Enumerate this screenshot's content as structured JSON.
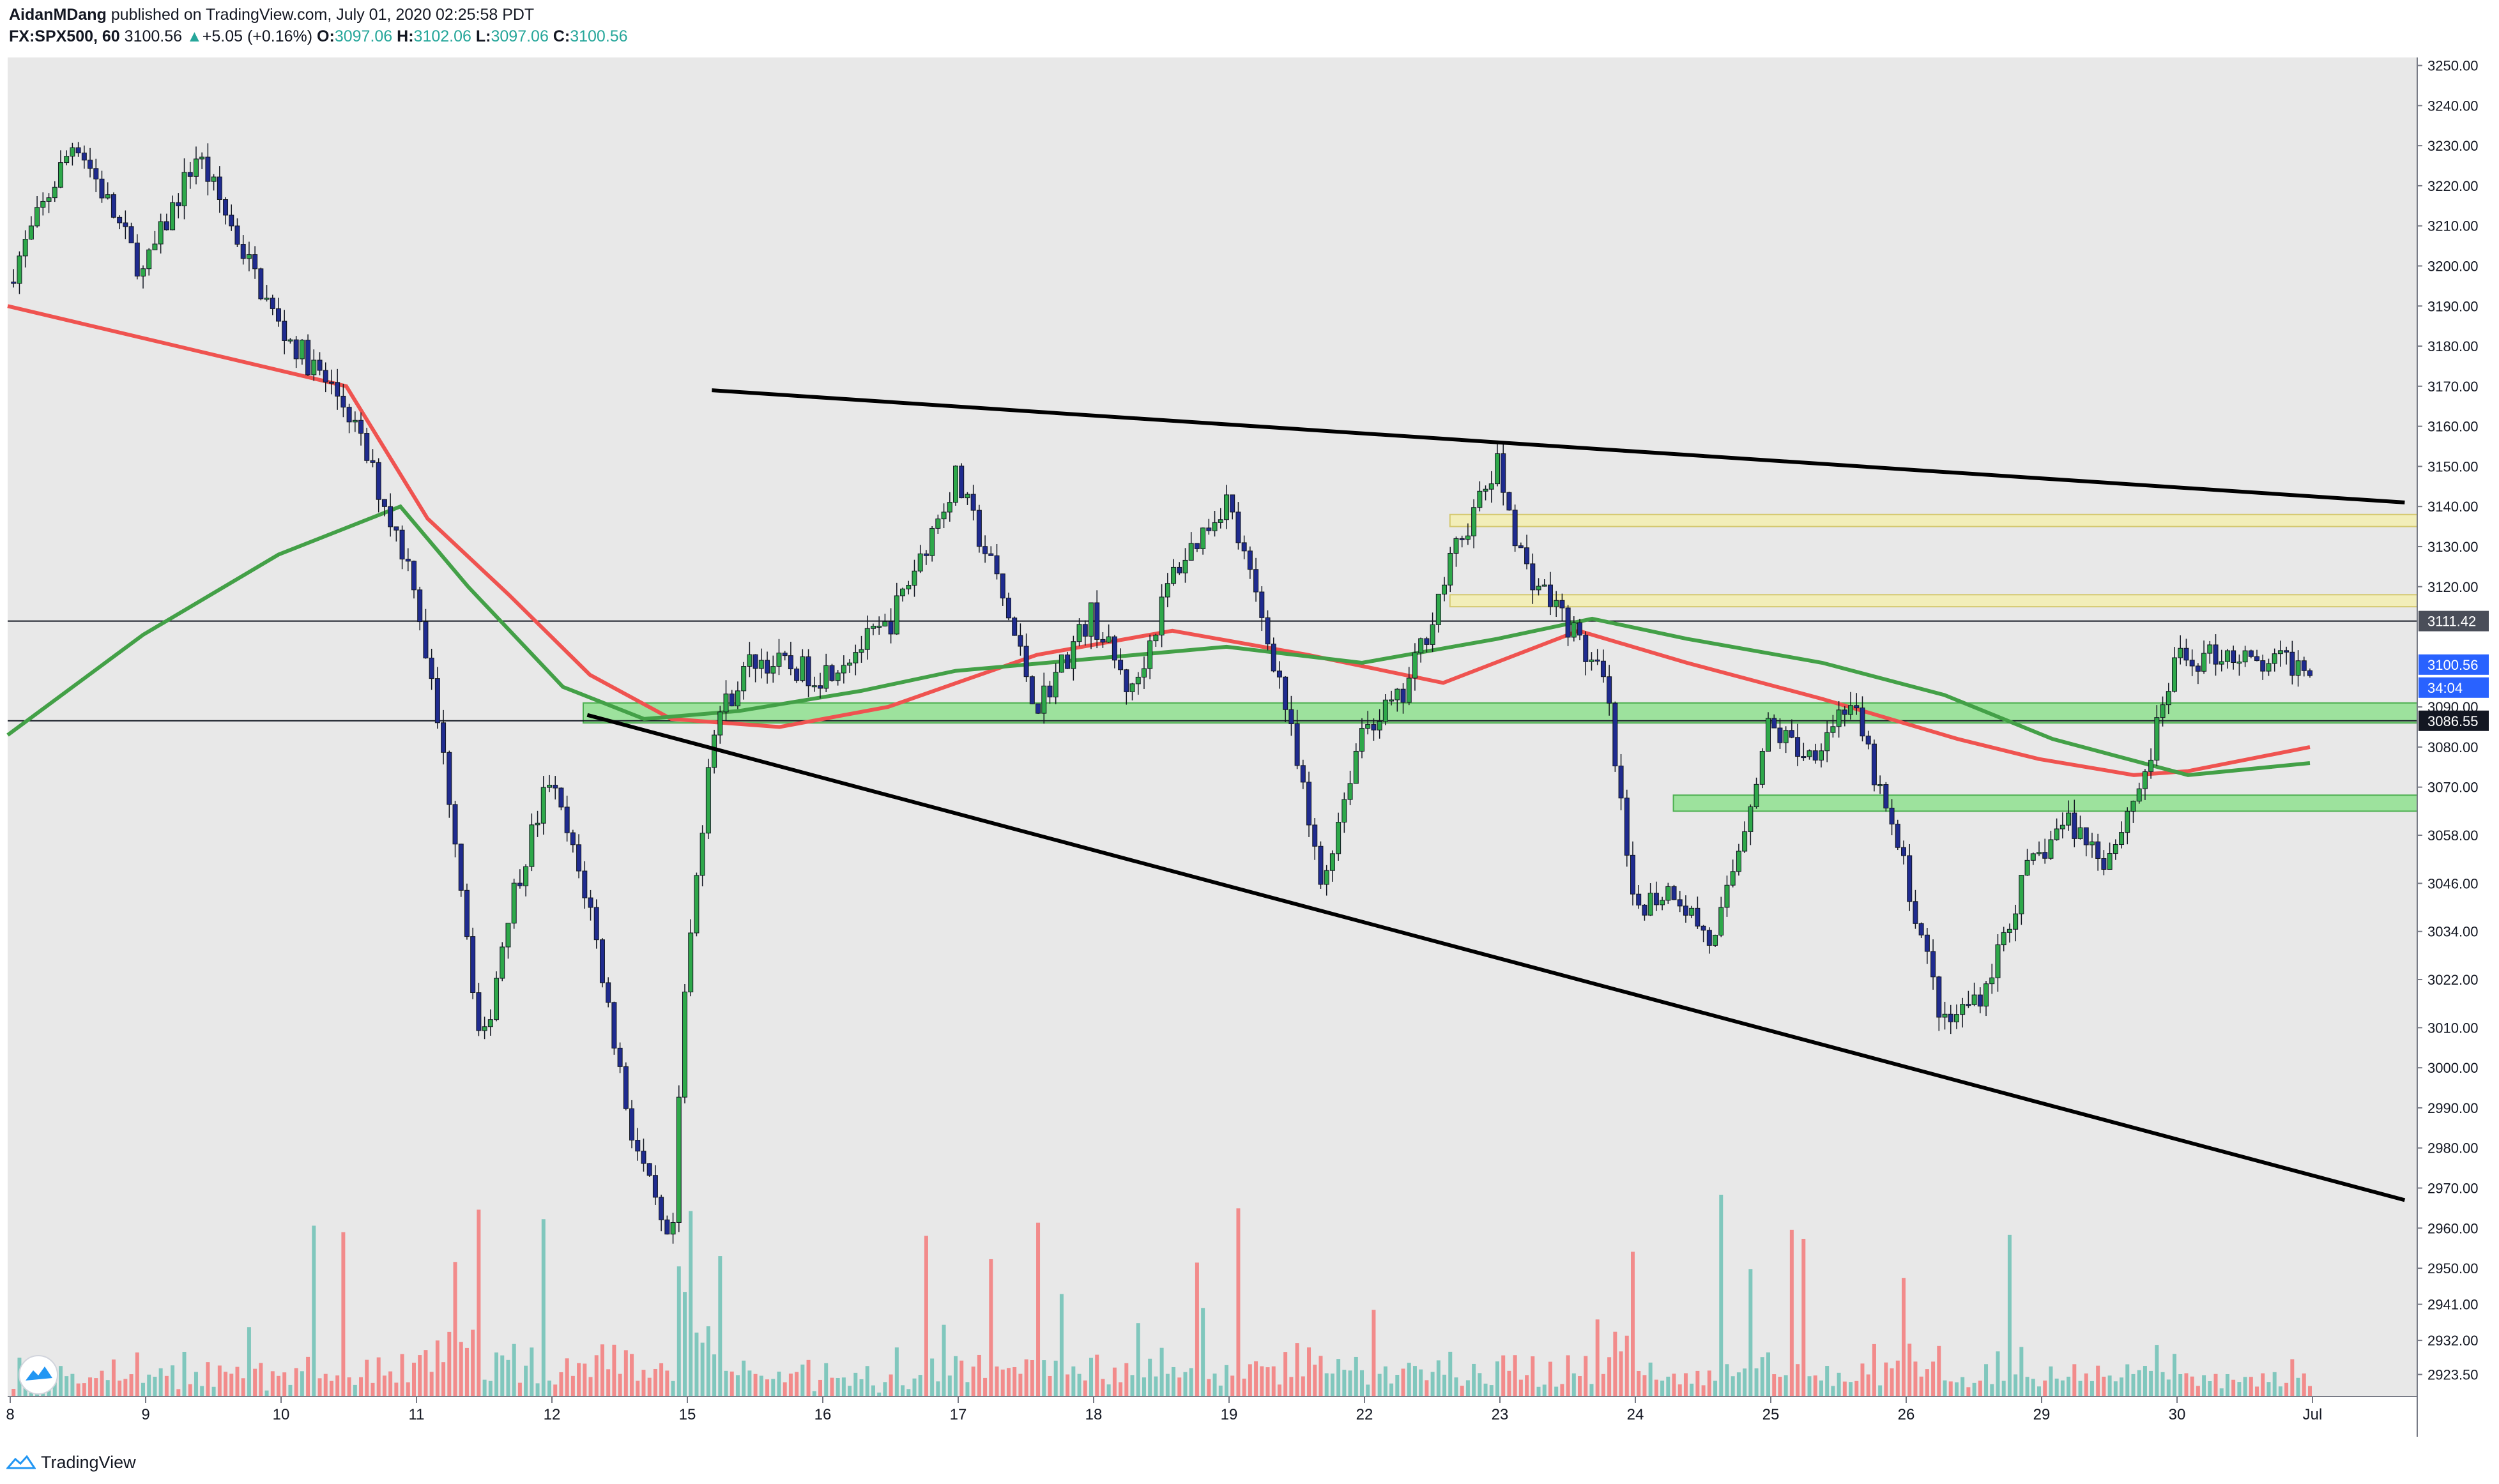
{
  "header": {
    "author": "AidanMDang",
    "published_text": "published on TradingView.com, July 01, 2020 02:25:58 PDT",
    "symbol": "FX:SPX500, 60",
    "last": "3100.56",
    "change": "+5.05 (+0.16%)",
    "o_label": "O:",
    "o": "3097.06",
    "h_label": "H:",
    "h": "3102.06",
    "l_label": "L:",
    "l": "3097.06",
    "c_label": "C:",
    "c": "3100.56"
  },
  "footer": {
    "brand": "TradingView",
    "icon": "tradingview-logo-icon"
  },
  "colors": {
    "background": "#e8e8e8",
    "up_candle": "#2ea84a",
    "down_candle": "#1f2b8f",
    "ma_red": "#ef5350",
    "ma_green": "#43a047",
    "volume_up": "#80c7bd",
    "volume_down": "#f28b8b",
    "zone_green": "#8fe08f",
    "zone_yellow": "#f3eeb0",
    "price_tag_blue": "#2962ff"
  },
  "chart_data": {
    "type": "candlestick",
    "ylim": [
      2918,
      3252
    ],
    "y_ticks": [
      "3250.00",
      "3240.00",
      "3230.00",
      "3220.00",
      "3210.00",
      "3200.00",
      "3190.00",
      "3180.00",
      "3170.00",
      "3160.00",
      "3150.00",
      "3140.00",
      "3130.00",
      "3120.00",
      "3111.42",
      "3100.56",
      "3090.00",
      "3080.00",
      "3070.00",
      "3058.00",
      "3046.00",
      "3034.00",
      "3022.00",
      "3010.00",
      "3000.00",
      "2990.00",
      "2980.00",
      "2970.00",
      "2960.00",
      "2950.00",
      "2941.00",
      "2932.00",
      "2923.50"
    ],
    "y_tick_values": [
      3250,
      3240,
      3230,
      3220,
      3210,
      3200,
      3190,
      3180,
      3170,
      3160,
      3150,
      3140,
      3130,
      3120,
      3111.42,
      3100.56,
      3090,
      3080,
      3070,
      3058,
      3046,
      3034,
      3022,
      3010,
      3000,
      2990,
      2980,
      2970,
      2960,
      2950,
      2941,
      2932,
      2923.5
    ],
    "x_tick_labels": [
      "8",
      "9",
      "10",
      "11",
      "12",
      "15",
      "16",
      "17",
      "18",
      "19",
      "22",
      "23",
      "24",
      "25",
      "26",
      "29",
      "30",
      "Jul"
    ],
    "price_tags": [
      {
        "value": 3111.42,
        "label": "3111.42",
        "style": "dark"
      },
      {
        "value": 3100.56,
        "label": "3100.56",
        "style": "blue"
      },
      {
        "value": 3100.56,
        "label": "34:04",
        "style": "blue-sub"
      },
      {
        "value": 3086.55,
        "label": "3086.55",
        "style": "black"
      }
    ],
    "horizontal_lines": [
      3111.42,
      3086.55
    ],
    "zones": [
      {
        "kind": "green",
        "from": 3086,
        "to": 3091,
        "start_day": 4.25
      },
      {
        "kind": "green",
        "from": 3064,
        "to": 3068,
        "start_day": 12.3
      },
      {
        "kind": "yellow",
        "from": 3135,
        "to": 3138,
        "start_day": 10.65
      },
      {
        "kind": "yellow",
        "from": 3115,
        "to": 3118,
        "start_day": 10.65
      }
    ],
    "trendlines": [
      {
        "from": [
          5.2,
          3169
        ],
        "to": [
          17.7,
          3141
        ]
      },
      {
        "from": [
          4.28,
          3088
        ],
        "to": [
          17.7,
          2967
        ]
      }
    ],
    "close_path_days": [
      0,
      0.5,
      1,
      1.4,
      2,
      2.5,
      3,
      3.3,
      3.5,
      3.7,
      4,
      4.3,
      4.6,
      4.9,
      5.0,
      5.2,
      5.5,
      6.0,
      6.5,
      7,
      7.3,
      7.6,
      8,
      8.3,
      8.6,
      9,
      9.4,
      9.7,
      10.0,
      10.3,
      10.7,
      11,
      11.2,
      11.5,
      11.8,
      12.0,
      12.3,
      12.6,
      13,
      13.3,
      13.6,
      14,
      14.3,
      14.6,
      14.9,
      15.2,
      15.5,
      15.8,
      16.0,
      16.2,
      16.4,
      16.6,
      16.8,
      17.0
    ],
    "close_path_values": [
      3196,
      3232,
      3198,
      3228,
      3185,
      3165,
      3122,
      3060,
      3003,
      3040,
      3072,
      3040,
      2985,
      2952,
      3018,
      3085,
      3102,
      3098,
      3110,
      3147,
      3122,
      3090,
      3113,
      3093,
      3123,
      3142,
      3096,
      3045,
      3085,
      3092,
      3130,
      3150,
      3125,
      3112,
      3095,
      3040,
      3045,
      3030,
      3085,
      3078,
      3092,
      3050,
      3010,
      3020,
      3048,
      3062,
      3052,
      3075,
      3101,
      3102,
      3104,
      3100,
      3101,
      3100.56
    ],
    "ma_red": [
      [
        0.0,
        3190
      ],
      [
        2.5,
        3170
      ],
      [
        3.1,
        3137
      ],
      [
        3.7,
        3118
      ],
      [
        4.3,
        3098
      ],
      [
        4.9,
        3087
      ],
      [
        5.7,
        3085
      ],
      [
        6.5,
        3090
      ],
      [
        7.6,
        3103
      ],
      [
        8.6,
        3109
      ],
      [
        9.6,
        3103
      ],
      [
        10.6,
        3096
      ],
      [
        11.6,
        3109
      ],
      [
        12.4,
        3101
      ],
      [
        13.4,
        3092
      ],
      [
        14.4,
        3082
      ],
      [
        15.0,
        3077
      ],
      [
        15.7,
        3073
      ],
      [
        16.1,
        3074
      ],
      [
        17.0,
        3080
      ]
    ],
    "ma_green": [
      [
        0.0,
        3083
      ],
      [
        1.0,
        3108
      ],
      [
        2.0,
        3128
      ],
      [
        2.9,
        3140
      ],
      [
        3.4,
        3120
      ],
      [
        4.1,
        3095
      ],
      [
        4.7,
        3087
      ],
      [
        5.4,
        3089
      ],
      [
        6.3,
        3094
      ],
      [
        7.0,
        3099
      ],
      [
        8.0,
        3102
      ],
      [
        9.0,
        3105
      ],
      [
        10.0,
        3101
      ],
      [
        11.0,
        3107
      ],
      [
        11.7,
        3112
      ],
      [
        12.4,
        3107
      ],
      [
        13.4,
        3101
      ],
      [
        14.3,
        3093
      ],
      [
        15.1,
        3082
      ],
      [
        16.1,
        3073
      ],
      [
        17.0,
        3076
      ]
    ],
    "volume_scale_max": 100
  }
}
